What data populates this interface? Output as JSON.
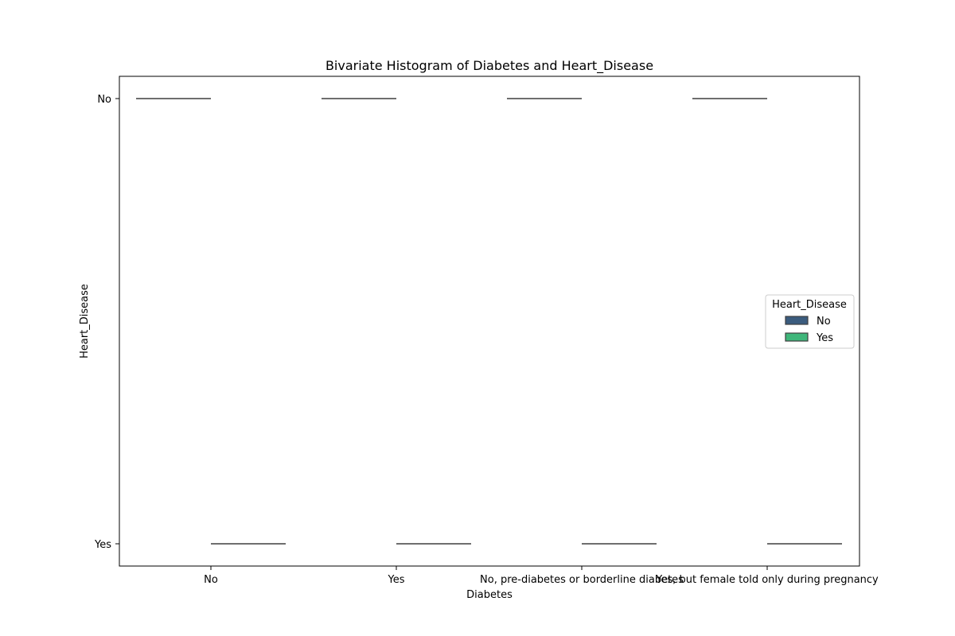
{
  "chart_data": {
    "type": "box",
    "title": "Bivariate Histogram of Diabetes and Heart_Disease",
    "xlabel": "Diabetes",
    "ylabel": "Heart_Disease",
    "categories": [
      "No",
      "Yes",
      "No, pre-diabetes or borderline diabetes",
      "Yes, but female told only during pregnancy"
    ],
    "y_categories": [
      "No",
      "Yes"
    ],
    "series": [
      {
        "name": "No",
        "color": "#3b5c7e",
        "values": [
          "No",
          "No",
          "No",
          "No"
        ]
      },
      {
        "name": "Yes",
        "color": "#3fb67a",
        "values": [
          "Yes",
          "Yes",
          "Yes",
          "Yes"
        ]
      }
    ],
    "legend": {
      "title": "Heart_Disease",
      "position": "center-right"
    },
    "grid": false
  }
}
